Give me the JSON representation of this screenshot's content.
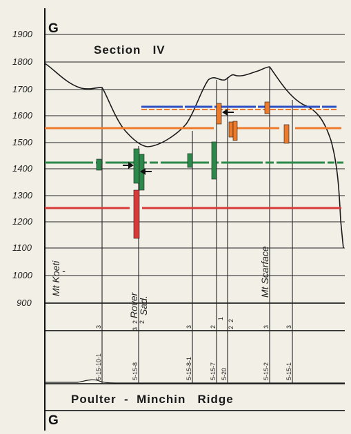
{
  "header": {
    "left_letter": "G",
    "title": "Section   IV"
  },
  "footer": {
    "left_letter": "G",
    "title": "Poulter  -  Minchin   Ridge"
  },
  "y_axis": {
    "ticks": [
      "1900",
      "1800",
      "1700",
      "1600",
      "1500",
      "1400",
      "1300",
      "1200",
      "1100",
      "1000",
      "900"
    ]
  },
  "peak_labels": {
    "koeti": "Mt Koeti",
    "koeti_dash": "-",
    "rover": "Rover",
    "sad": "Sad.",
    "scarface": "Mt Scarface"
  },
  "samples": [
    {
      "id": "5-15-10-1",
      "n1": "3",
      "n2": ""
    },
    {
      "id": "5-15-8",
      "n1": "3  2",
      "n2": "2"
    },
    {
      "id": "5-15-8-1",
      "n1": "3",
      "n2": ""
    },
    {
      "id": "5-15-7",
      "n1": "2",
      "n2": ""
    },
    {
      "id": "5-20",
      "n1": "1",
      "n2": "2  2"
    },
    {
      "id": "5-15-2",
      "n1": "3",
      "n2": ""
    },
    {
      "id": "5-15-1",
      "n1": "3",
      "n2": ""
    }
  ],
  "colors": {
    "blue": "#2c4fc4",
    "orange": "#ee7a2c",
    "green": "#2b8a4a",
    "red": "#d83a3a",
    "ink": "#1a1a1a"
  }
}
